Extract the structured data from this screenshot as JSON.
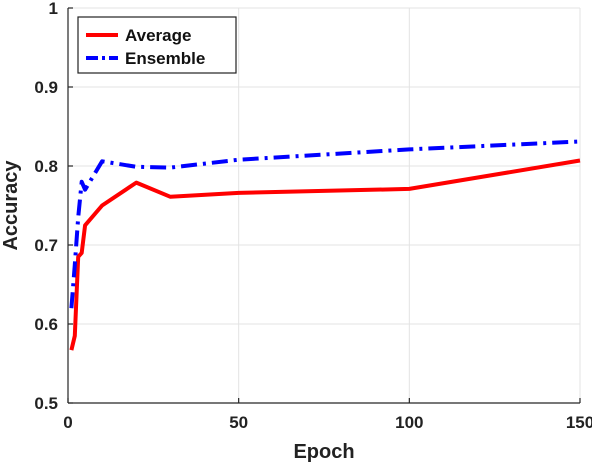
{
  "chart_data": {
    "type": "line",
    "title": "",
    "xlabel": "Epoch",
    "ylabel": "Accuracy",
    "xlim": [
      0,
      150
    ],
    "ylim": [
      0.5,
      1
    ],
    "xticks": [
      0,
      50,
      100,
      150
    ],
    "yticks": [
      0.5,
      0.6,
      0.7,
      0.8,
      0.9,
      1
    ],
    "xtick_labels": [
      "0",
      "50",
      "100",
      "150"
    ],
    "ytick_labels": [
      "0.5",
      "0.6",
      "0.7",
      "0.8",
      "0.9",
      "1"
    ],
    "grid": true,
    "legend_position": "top-left",
    "series": [
      {
        "name": "Average",
        "color": "#ff0000",
        "style": "solid",
        "x": [
          1,
          2,
          3,
          4,
          5,
          10,
          20,
          30,
          50,
          100,
          150
        ],
        "y": [
          0.567,
          0.585,
          0.685,
          0.69,
          0.725,
          0.75,
          0.779,
          0.761,
          0.766,
          0.771,
          0.807
        ]
      },
      {
        "name": "Ensemble",
        "color": "#0000ff",
        "style": "dashdot",
        "x": [
          1,
          2,
          3,
          4,
          5,
          10,
          20,
          30,
          50,
          100,
          150
        ],
        "y": [
          0.62,
          0.675,
          0.735,
          0.78,
          0.77,
          0.806,
          0.799,
          0.798,
          0.808,
          0.821,
          0.831
        ]
      }
    ]
  }
}
